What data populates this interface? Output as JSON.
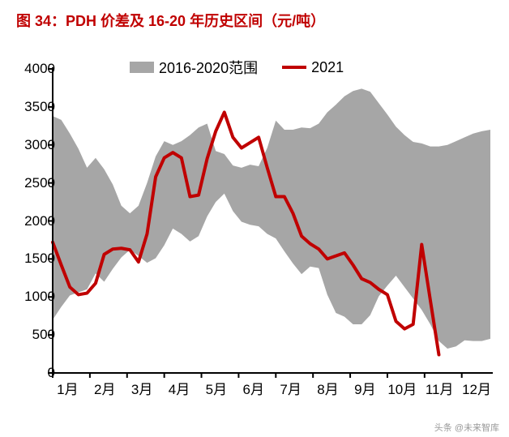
{
  "title": {
    "text": "图 34：PDH 价差及 16-20 年历史区间（元/吨）",
    "color": "#c00000",
    "fontsize": 18
  },
  "watermark": "头条 @未来智库",
  "chart": {
    "type": "area+line",
    "background_color": "#ffffff",
    "axis_color": "#000000",
    "axis_width": 2,
    "tick_fontsize": 17,
    "tick_color": "#000000",
    "ylim": [
      0,
      4000
    ],
    "ytick_step": 500,
    "yticks": [
      0,
      500,
      1000,
      1500,
      2000,
      2500,
      3000,
      3500,
      4000
    ],
    "xticks": [
      "1月",
      "2月",
      "3月",
      "4月",
      "5月",
      "6月",
      "7月",
      "8月",
      "9月",
      "10月",
      "11月",
      "12月"
    ],
    "legend": {
      "position": "top-center",
      "fontsize": 18,
      "items": [
        {
          "label": "2016-2020范围",
          "type": "area",
          "color": "#a6a6a6"
        },
        {
          "label": "2021",
          "type": "line",
          "color": "#c00000",
          "width": 4
        }
      ]
    },
    "range_band": {
      "color": "#a6a6a6",
      "opacity": 1.0,
      "x_count": 52,
      "upper": [
        3380,
        3330,
        3150,
        2950,
        2700,
        2830,
        2680,
        2480,
        2200,
        2100,
        2200,
        2500,
        2850,
        3050,
        3000,
        3050,
        3130,
        3230,
        3280,
        2920,
        2880,
        2730,
        2700,
        2740,
        2720,
        2960,
        3320,
        3200,
        3200,
        3230,
        3220,
        3280,
        3430,
        3530,
        3640,
        3710,
        3740,
        3700,
        3550,
        3400,
        3240,
        3130,
        3040,
        3020,
        2980,
        2980,
        3000,
        3050,
        3100,
        3150,
        3180,
        3200
      ],
      "lower": [
        700,
        870,
        1020,
        1060,
        1100,
        1310,
        1200,
        1370,
        1520,
        1620,
        1540,
        1450,
        1510,
        1680,
        1900,
        1830,
        1730,
        1800,
        2060,
        2250,
        2360,
        2130,
        1990,
        1950,
        1930,
        1830,
        1770,
        1600,
        1440,
        1300,
        1400,
        1380,
        1030,
        790,
        740,
        640,
        640,
        760,
        1010,
        1150,
        1280,
        1130,
        980,
        830,
        640,
        420,
        320,
        350,
        430,
        420,
        420,
        450
      ]
    },
    "line_2021": {
      "color": "#c00000",
      "width": 4,
      "x_count": 46,
      "values": [
        1720,
        1420,
        1130,
        1030,
        1050,
        1180,
        1560,
        1630,
        1640,
        1620,
        1460,
        1830,
        2580,
        2830,
        2900,
        2830,
        2320,
        2340,
        2820,
        3180,
        3430,
        3100,
        2960,
        3030,
        3100,
        2700,
        2320,
        2320,
        2100,
        1800,
        1700,
        1630,
        1500,
        1540,
        1580,
        1420,
        1240,
        1190,
        1100,
        1030,
        680,
        580,
        640,
        1690,
        960,
        240
      ]
    }
  }
}
